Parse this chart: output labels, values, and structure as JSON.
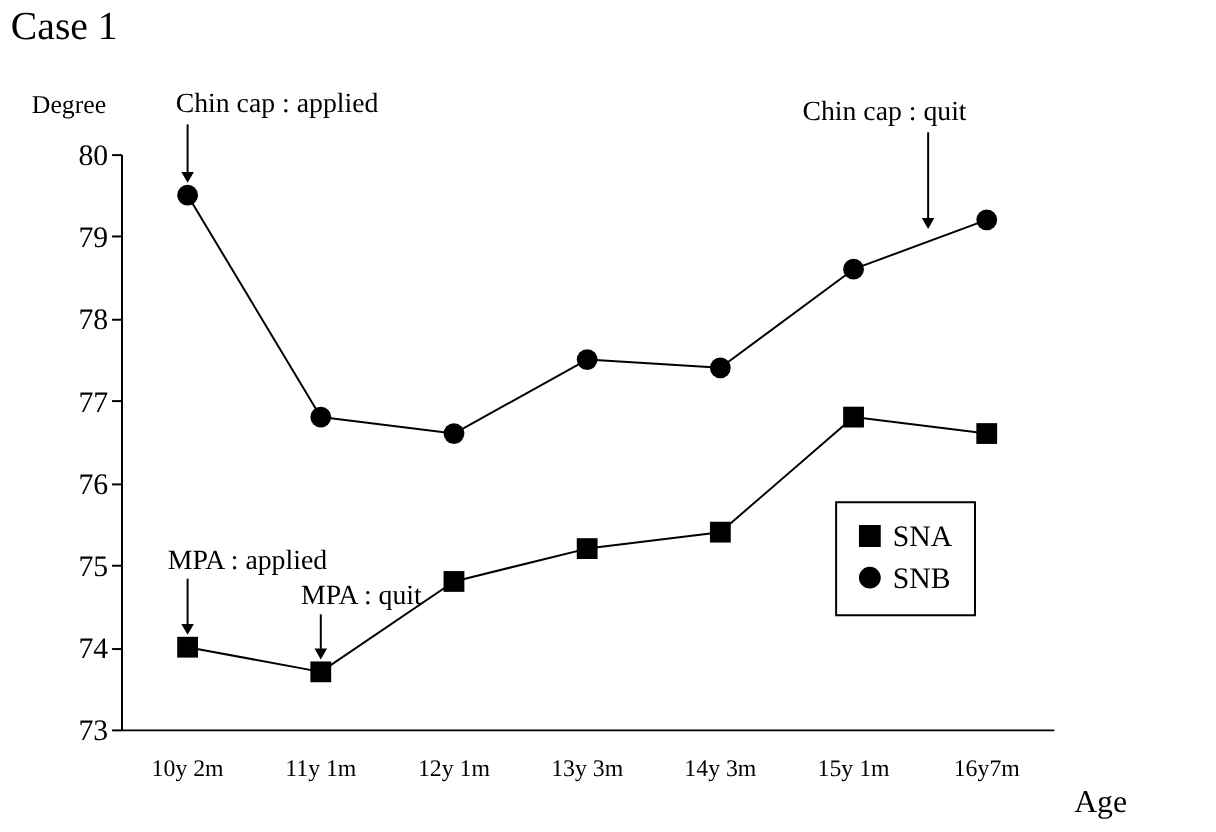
{
  "chart_data": {
    "type": "line",
    "title": "Case 1",
    "xlabel": "Age",
    "ylabel": "Degree",
    "categories": [
      "10y 2m",
      "11y 1m",
      "12y 1m",
      "13y 3m",
      "14y 3m",
      "15y 1m",
      "16y7m"
    ],
    "series": [
      {
        "name": "SNA",
        "color": "#000000",
        "marker": "square",
        "values": [
          74.0,
          73.7,
          74.8,
          75.2,
          75.4,
          76.8,
          76.6
        ]
      },
      {
        "name": "SNB",
        "color": "#000000",
        "marker": "circle",
        "values": [
          79.5,
          76.8,
          76.6,
          77.5,
          77.4,
          78.6,
          79.2
        ]
      }
    ],
    "ylim": [
      73,
      80
    ],
    "yticks": [
      73,
      74,
      75,
      76,
      77,
      78,
      79,
      80
    ],
    "grid": false,
    "legend": "bottom right",
    "line_style": "solid",
    "annotations": [
      {
        "text": "Chin cap : applied",
        "x": "10y 2m",
        "y": 79.5
      },
      {
        "text": "MPA : applied",
        "x": "10y 2m",
        "y": 74.0
      },
      {
        "text": "MPA : quit",
        "x": "11y 1m",
        "y": 73.7
      },
      "Chin cap : quit"
    ]
  }
}
